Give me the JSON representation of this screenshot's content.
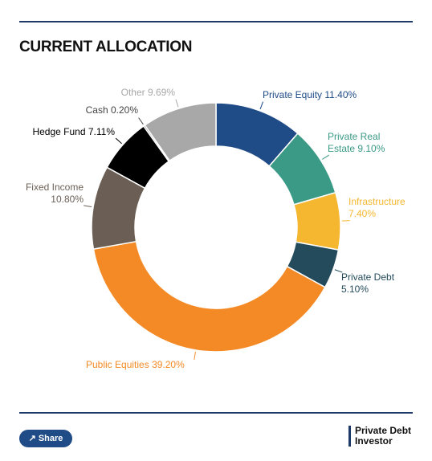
{
  "chart_data": {
    "type": "donut",
    "title": "CURRENT ALLOCATION",
    "categories": [
      "Private Equity",
      "Private Real Estate",
      "Infrastructure",
      "Private Debt",
      "Public Equities",
      "Fixed Income",
      "Hedge Fund",
      "Cash",
      "Other"
    ],
    "values": [
      11.4,
      9.1,
      7.4,
      5.1,
      39.2,
      10.8,
      7.11,
      0.2,
      9.69
    ],
    "value_labels": [
      "11.40%",
      "9.10%",
      "7.40%",
      "5.10%",
      "39.20%",
      "10.80%",
      "7.11%",
      "0.20%",
      "9.69%"
    ],
    "colors": [
      "#1f4b87",
      "#3a9a86",
      "#f5b730",
      "#244b5b",
      "#f48a25",
      "#6b5f55",
      "#000000",
      "#444444",
      "#a8a8a8"
    ]
  },
  "share_button": "Share",
  "brand": [
    "Private Debt",
    "Investor"
  ]
}
